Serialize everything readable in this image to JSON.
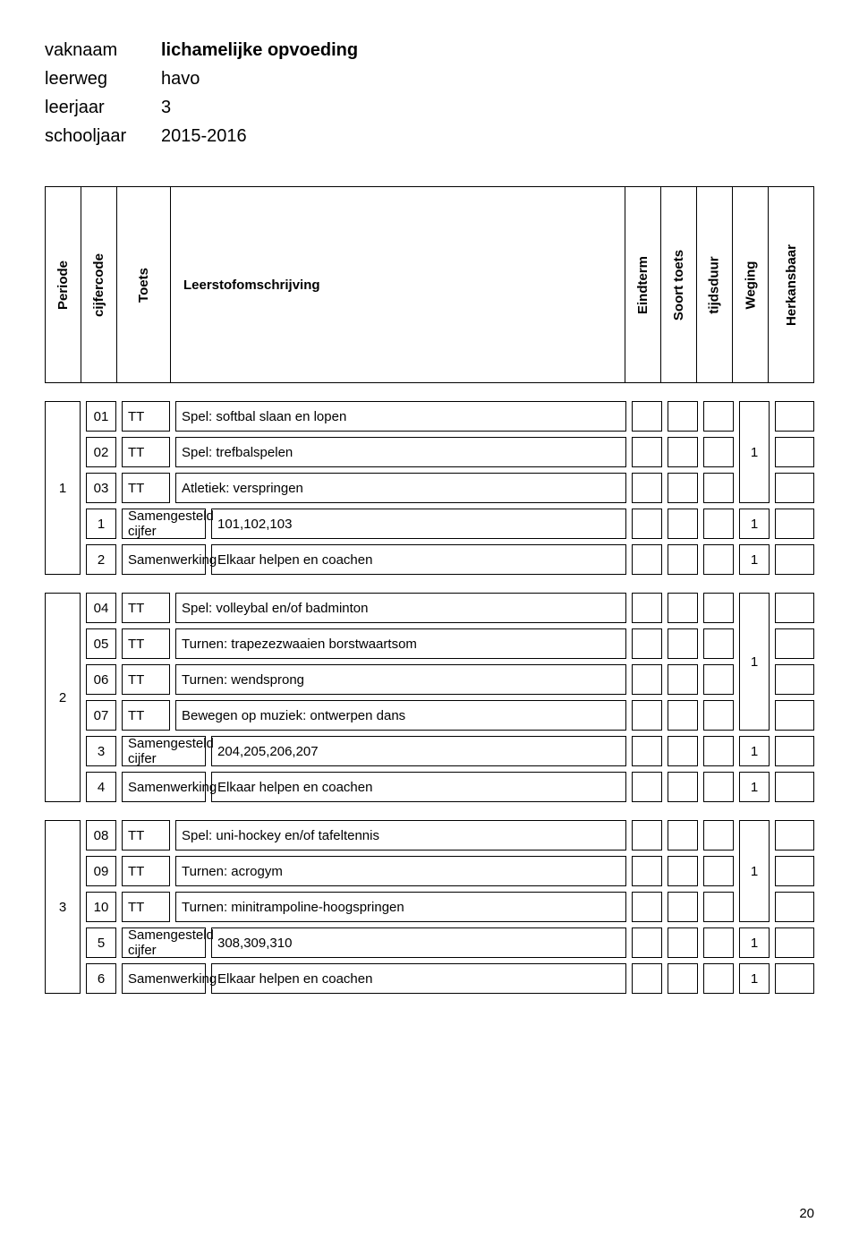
{
  "meta": {
    "vaknaam_label": "vaknaam",
    "vaknaam_value": "lichamelijke opvoeding",
    "leerweg_label": "leerweg",
    "leerweg_value": "havo",
    "leerjaar_label": "leerjaar",
    "leerjaar_value": "3",
    "schooljaar_label": "schooljaar",
    "schooljaar_value": "2015-2016"
  },
  "headers": {
    "periode": "Periode",
    "cijfercode": "cijfercode",
    "toets": "Toets",
    "leerstof": "Leerstofomschrijving",
    "eindterm": "Eindterm",
    "soort": "Soort toets",
    "tijdsduur": "tijdsduur",
    "weging": "Weging",
    "herkansbaar": "Herkansbaar"
  },
  "groups": [
    {
      "periode": "1",
      "rows": [
        {
          "code": "01",
          "toets": "TT",
          "desc": "Spel: softbal slaan en lopen",
          "type": "merge_top"
        },
        {
          "code": "02",
          "toets": "TT",
          "desc": "Spel: trefbalspelen",
          "type": "merge_mid"
        },
        {
          "code": "03",
          "toets": "TT",
          "desc": "Atletiek: verspringen",
          "type": "merge_bot",
          "merged_weging": "1"
        },
        {
          "code": "1",
          "toets_wide": "Samengesteld cijfer",
          "desc": "101,102,103",
          "weging": "1",
          "type": "single"
        },
        {
          "code": "2",
          "toets_wide": "Samenwerking",
          "desc": "Elkaar helpen en coachen",
          "weging": "1",
          "type": "single"
        }
      ]
    },
    {
      "periode": "2",
      "rows": [
        {
          "code": "04",
          "toets": "TT",
          "desc": "Spel: volleybal en/of badminton",
          "type": "merge_top"
        },
        {
          "code": "05",
          "toets": "TT",
          "desc": "Turnen: trapezezwaaien borstwaartsom",
          "type": "merge_mid"
        },
        {
          "code": "06",
          "toets": "TT",
          "desc": "Turnen: wendsprong",
          "type": "merge_mid"
        },
        {
          "code": "07",
          "toets": "TT",
          "desc": "Bewegen op muziek: ontwerpen dans",
          "type": "merge_bot",
          "merged_weging": "1"
        },
        {
          "code": "3",
          "toets_wide": "Samengesteld cijfer",
          "desc": "204,205,206,207",
          "weging": "1",
          "type": "single"
        },
        {
          "code": "4",
          "toets_wide": "Samenwerking",
          "desc": "Elkaar helpen en coachen",
          "weging": "1",
          "type": "single"
        }
      ]
    },
    {
      "periode": "3",
      "rows": [
        {
          "code": "08",
          "toets": "TT",
          "desc": "Spel: uni-hockey en/of tafeltennis",
          "type": "merge_top"
        },
        {
          "code": "09",
          "toets": "TT",
          "desc": "Turnen: acrogym",
          "type": "merge_mid"
        },
        {
          "code": "10",
          "toets": "TT",
          "desc": "Turnen: minitrampoline-hoogspringen",
          "type": "merge_bot",
          "merged_weging": "1"
        },
        {
          "code": "5",
          "toets_wide": "Samengesteld cijfer",
          "desc": "308,309,310",
          "weging": "1",
          "type": "single"
        },
        {
          "code": "6",
          "toets_wide": "Samenwerking",
          "desc": "Elkaar helpen en coachen",
          "weging": "1",
          "type": "single"
        }
      ]
    }
  ],
  "page_number": "20"
}
